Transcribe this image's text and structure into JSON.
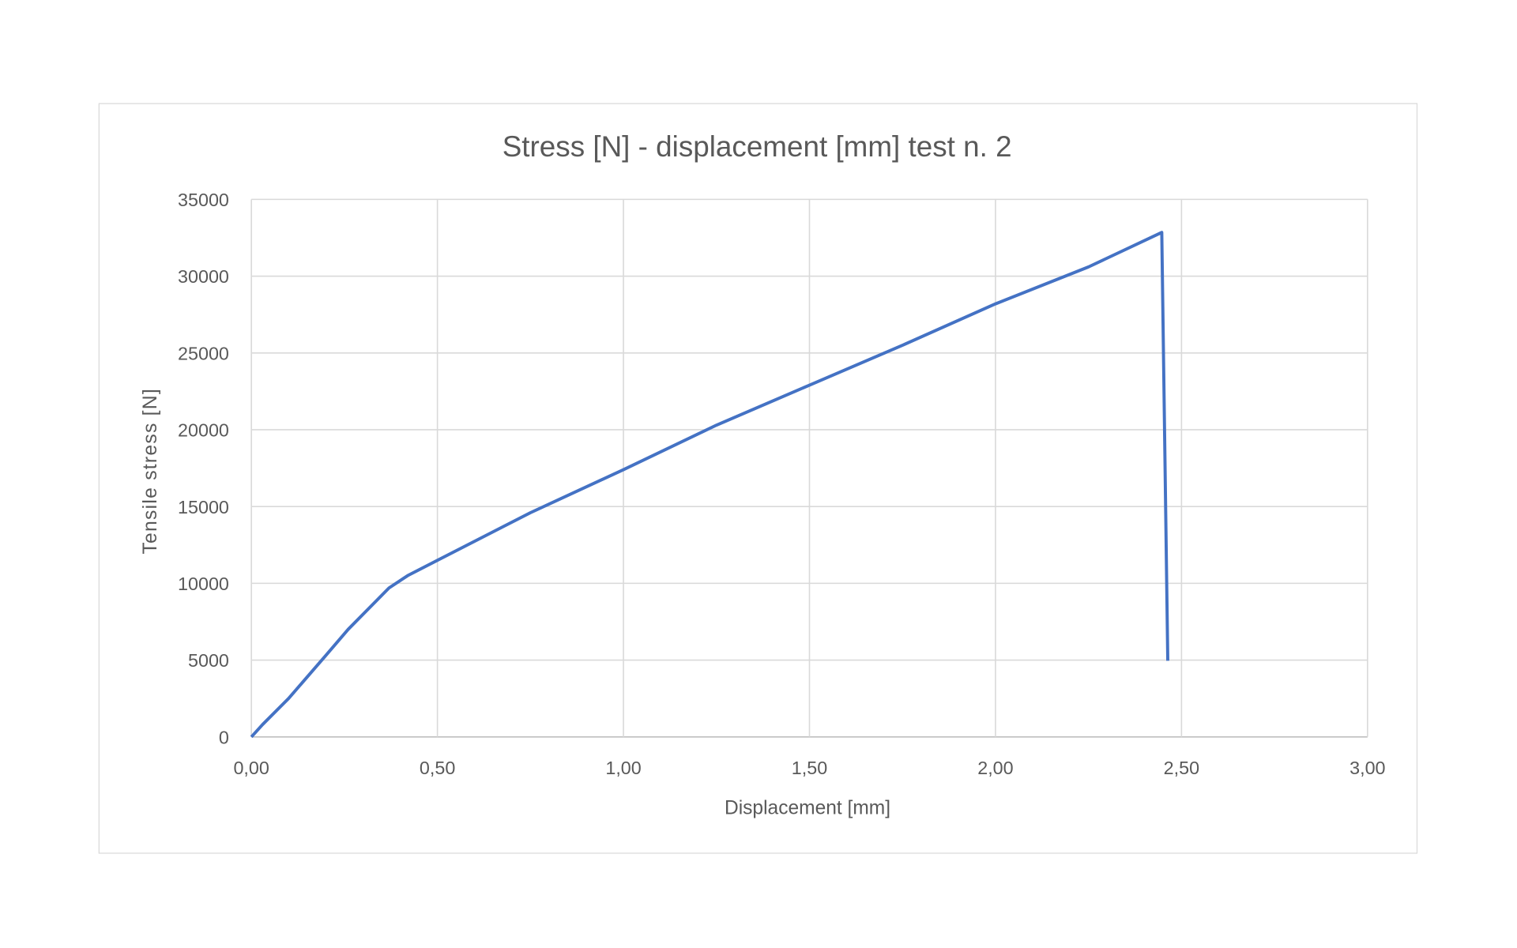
{
  "chart_data": {
    "type": "line",
    "title": "Stress [N] - displacement [mm] test n. 2",
    "xlabel": "Displacement [mm]",
    "ylabel": "Tensile stress [N]",
    "xlim": [
      0,
      3
    ],
    "ylim": [
      0,
      35000
    ],
    "x_ticks": [
      "0,00",
      "0,50",
      "1,00",
      "1,50",
      "2,00",
      "2,50",
      "3,00"
    ],
    "y_ticks": [
      "0",
      "5000",
      "10000",
      "15000",
      "20000",
      "25000",
      "30000",
      "35000"
    ],
    "grid": true,
    "legend": "none",
    "series": [
      {
        "color": "#4472C4",
        "x": [
          0,
          0.03,
          0.1,
          0.2,
          0.26,
          0.37,
          0.42,
          0.5,
          0.75,
          1.0,
          1.25,
          1.5,
          1.75,
          2.0,
          2.25,
          2.447,
          2.463
        ],
        "y": [
          0,
          800,
          2500,
          5300,
          7000,
          9700,
          10500,
          11500,
          14600,
          17400,
          20300,
          22900,
          25500,
          28200,
          30600,
          32850,
          4960
        ]
      }
    ]
  }
}
